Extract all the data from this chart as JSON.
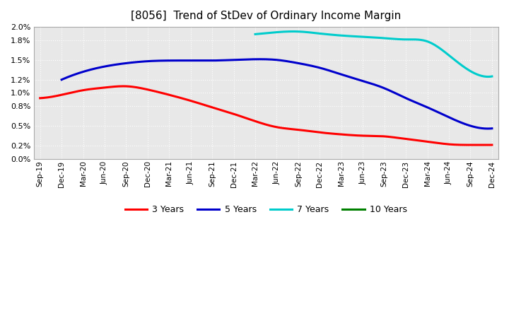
{
  "title": "[8056]  Trend of StDev of Ordinary Income Margin",
  "x_labels": [
    "Sep-19",
    "Dec-19",
    "Mar-20",
    "Jun-20",
    "Sep-20",
    "Dec-20",
    "Mar-21",
    "Jun-21",
    "Sep-21",
    "Dec-21",
    "Mar-22",
    "Jun-22",
    "Sep-22",
    "Dec-22",
    "Mar-23",
    "Jun-23",
    "Sep-23",
    "Dec-23",
    "Mar-24",
    "Jun-24",
    "Sep-24",
    "Dec-24"
  ],
  "series_3y": [
    0.0092,
    0.0097,
    0.0104,
    0.0108,
    0.011,
    0.0105,
    0.0097,
    0.0088,
    0.0078,
    0.0068,
    0.0057,
    0.0048,
    0.0044,
    0.004,
    0.0037,
    0.0035,
    0.0034,
    0.003,
    0.0026,
    0.0022,
    0.0021,
    0.0021
  ],
  "series_5y": [
    null,
    0.012,
    0.0132,
    0.014,
    0.0145,
    0.0148,
    0.0149,
    0.0149,
    0.0149,
    0.015,
    0.0151,
    0.015,
    0.0145,
    0.0138,
    0.0128,
    0.0118,
    0.0107,
    0.0092,
    0.0078,
    0.0063,
    0.005,
    0.0046
  ],
  "series_7y": [
    null,
    null,
    null,
    null,
    null,
    null,
    null,
    null,
    null,
    null,
    0.0189,
    0.0192,
    0.0193,
    0.019,
    0.0187,
    0.0185,
    0.0183,
    0.0181,
    0.0178,
    0.0157,
    0.0133,
    0.0125
  ],
  "series_10y": [],
  "color_3y": "#ff0000",
  "color_5y": "#0000cc",
  "color_7y": "#00cccc",
  "color_10y": "#008000",
  "ylim": [
    0.0,
    0.02
  ],
  "ytick_vals": [
    0.0,
    0.002,
    0.005,
    0.008,
    0.01,
    0.012,
    0.015,
    0.018,
    0.02
  ],
  "ytick_labels": [
    "0.0%",
    "0.2%",
    "0.5%",
    "0.8%",
    "1.0%",
    "1.2%",
    "1.5%",
    "1.8%",
    "2.0%"
  ],
  "background_color": "#ffffff",
  "plot_background": "#e8e8e8",
  "grid_color": "#ffffff",
  "linewidth": 2.2
}
